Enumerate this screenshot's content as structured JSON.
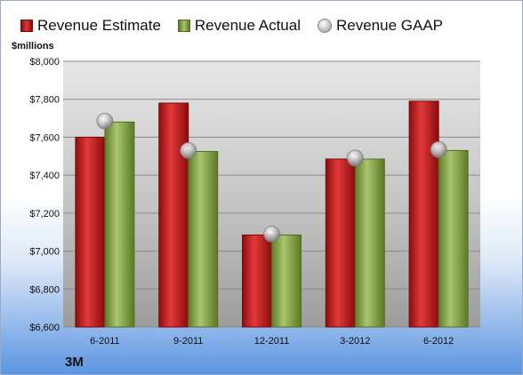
{
  "chart_data": {
    "type": "bar",
    "ylabel": "$millions",
    "ylim": [
      6600,
      8000
    ],
    "yticks": [
      "$6,600",
      "$6,800",
      "$7,000",
      "$7,200",
      "$7,400",
      "$7,600",
      "$7,800",
      "$8,000"
    ],
    "ytick_values": [
      6600,
      6800,
      7000,
      7200,
      7400,
      7600,
      7800,
      8000
    ],
    "categories": [
      "6-2011",
      "9-2011",
      "12-2011",
      "3-2012",
      "6-2012"
    ],
    "series": [
      {
        "name": "Revenue Estimate",
        "kind": "bar",
        "color": "#c81a1a",
        "values": [
          7600,
          7780,
          7085,
          7485,
          7790
        ]
      },
      {
        "name": "Revenue Actual",
        "kind": "bar",
        "color": "#8fae4f",
        "values": [
          7680,
          7525,
          7085,
          7485,
          7530
        ]
      },
      {
        "name": "Revenue GAAP",
        "kind": "marker",
        "color": "#b9b9b9",
        "values": [
          7685,
          7530,
          7090,
          7490,
          7535
        ]
      }
    ],
    "legend_position": "top",
    "grid": true
  },
  "footer": {
    "company": "3M"
  }
}
